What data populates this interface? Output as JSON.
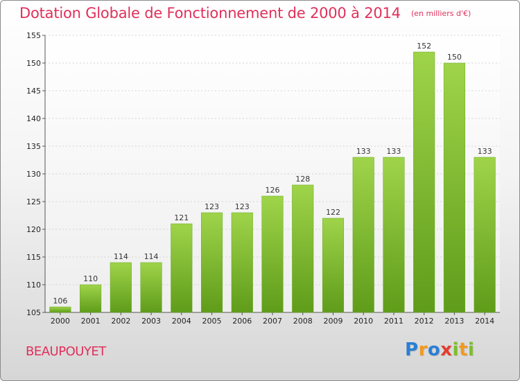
{
  "title": "Dotation Globale de Fonctionnement de 2000 à 2014",
  "unit_note": "(en milliers d'€)",
  "commune": "BEAUPOUYET",
  "logo": {
    "letters": [
      {
        "char": "P",
        "color": "#2a7fd4"
      },
      {
        "char": "r",
        "color": "#f29a1e"
      },
      {
        "char": "o",
        "color": "#2a7fd4"
      },
      {
        "char": "x",
        "color": "#e63c2f"
      },
      {
        "char": "i",
        "color": "#7bbf2a"
      },
      {
        "char": "t",
        "color": "#f29a1e"
      },
      {
        "char": "i",
        "color": "#7bbf2a"
      }
    ]
  },
  "chart_data": {
    "type": "bar",
    "title": "Dotation Globale de Fonctionnement de 2000 à 2014",
    "subtitle": "(en milliers d'€)",
    "xlabel": "",
    "ylabel": "",
    "categories": [
      "2000",
      "2001",
      "2002",
      "2003",
      "2004",
      "2005",
      "2006",
      "2007",
      "2008",
      "2009",
      "2010",
      "2011",
      "2012",
      "2013",
      "2014"
    ],
    "values": [
      106,
      110,
      114,
      114,
      121,
      123,
      123,
      126,
      128,
      122,
      133,
      133,
      152,
      150,
      133
    ],
    "ylim": [
      105,
      155
    ],
    "yticks": [
      105,
      110,
      115,
      120,
      125,
      130,
      135,
      140,
      145,
      150,
      155
    ],
    "grid": true,
    "bar_color": "#7cbb2e"
  }
}
